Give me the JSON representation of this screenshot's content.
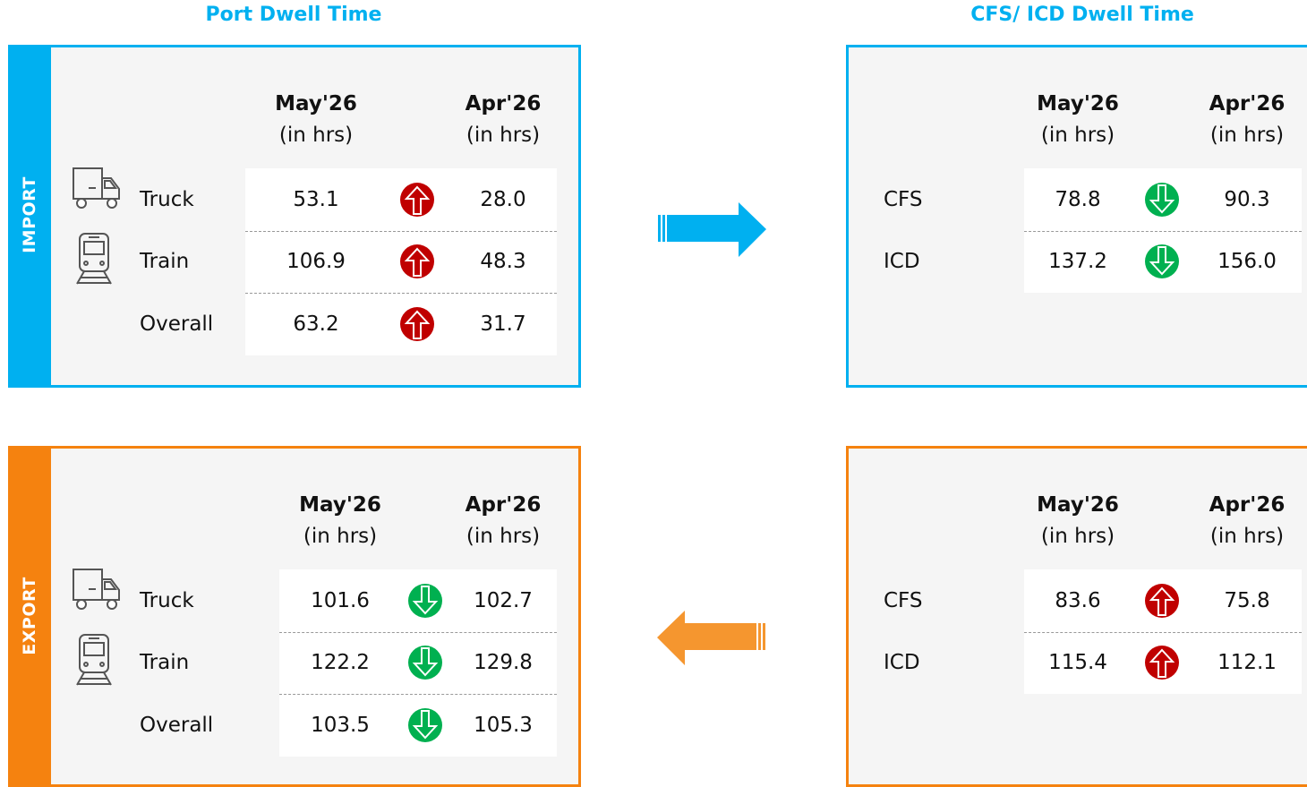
{
  "headers": {
    "port": "Port Dwell Time",
    "cfs": "CFS/ ICD Dwell Time"
  },
  "panels": [
    {
      "side": "IMPORT",
      "columns": [
        {
          "month": "May'26",
          "unit": "(in hrs)"
        },
        {
          "month": "Apr'26",
          "unit": "(in hrs)"
        }
      ],
      "rows": [
        {
          "label": "Truck",
          "current": "53.1",
          "previous": "28.0",
          "trend": "up"
        },
        {
          "label": "Train",
          "current": "106.9",
          "previous": "48.3",
          "trend": "up"
        },
        {
          "label": "Overall",
          "current": "63.2",
          "previous": "31.7",
          "trend": "up"
        }
      ]
    },
    {
      "columns": [
        {
          "month": "May'26",
          "unit": "(in hrs)"
        },
        {
          "month": "Apr'26",
          "unit": "(in hrs)"
        }
      ],
      "rows": [
        {
          "label": "CFS",
          "current": "78.8",
          "previous": "90.3",
          "trend": "down"
        },
        {
          "label": "ICD",
          "current": "137.2",
          "previous": "156.0",
          "trend": "down"
        }
      ]
    },
    {
      "side": "EXPORT",
      "columns": [
        {
          "month": "May'26",
          "unit": "(in hrs)"
        },
        {
          "month": "Apr'26",
          "unit": "(in hrs)"
        }
      ],
      "rows": [
        {
          "label": "Truck",
          "current": "101.6",
          "previous": "102.7",
          "trend": "down"
        },
        {
          "label": "Train",
          "current": "122.2",
          "previous": "129.8",
          "trend": "down"
        },
        {
          "label": "Overall",
          "current": "103.5",
          "previous": "105.3",
          "trend": "down"
        }
      ]
    },
    {
      "columns": [
        {
          "month": "May'26",
          "unit": "(in hrs)"
        },
        {
          "month": "Apr'26",
          "unit": "(in hrs)"
        }
      ],
      "rows": [
        {
          "label": "CFS",
          "current": "83.6",
          "previous": "75.8",
          "trend": "up"
        },
        {
          "label": "ICD",
          "current": "115.4",
          "previous": "112.1",
          "trend": "up"
        }
      ]
    }
  ]
}
